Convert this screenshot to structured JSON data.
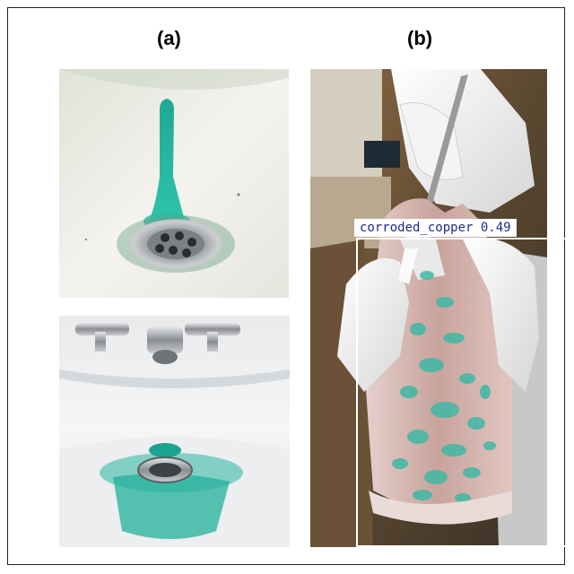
{
  "panels": {
    "a": {
      "label": "(a)"
    },
    "b": {
      "label": "(b)"
    }
  },
  "detection": {
    "class_name": "corroded_copper",
    "score": "0.49",
    "text": "corroded_copper 0.49",
    "box_color": "#ffffff",
    "text_color": "#1d2a8c"
  },
  "colors": {
    "stain": "#22b5a0",
    "sink": "#f2f0ea",
    "chrome": "#8d9094",
    "glove": "#eeeeee",
    "metal": "#c7a49c"
  }
}
